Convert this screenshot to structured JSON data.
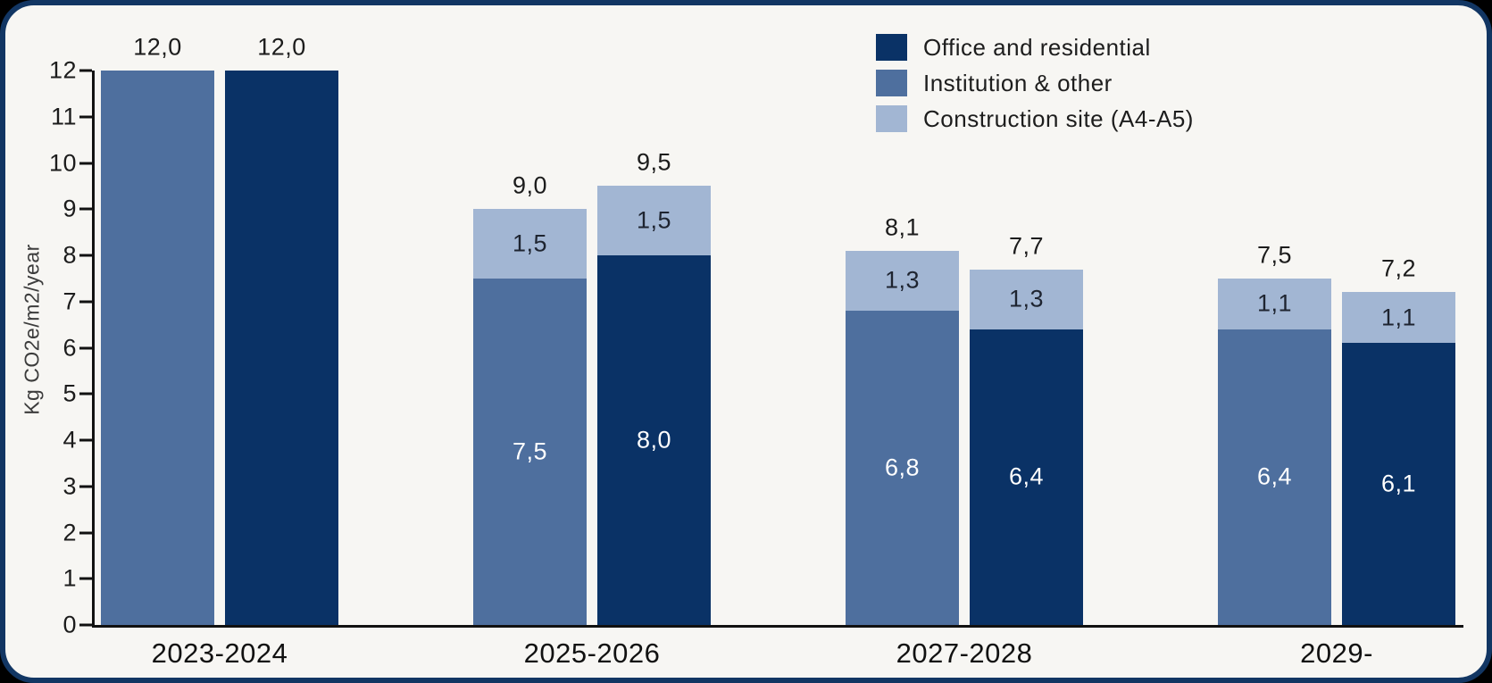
{
  "chart_data": {
    "type": "bar",
    "stacked": true,
    "title": "",
    "xlabel": "",
    "ylabel": "Kg CO2e/m2/year",
    "ylim": [
      0,
      12
    ],
    "yticks": [
      0,
      1,
      2,
      3,
      4,
      5,
      6,
      7,
      8,
      9,
      10,
      11,
      12
    ],
    "grid": false,
    "legend_position": "top-right",
    "legend": [
      {
        "label": "Office and residential",
        "color": "#0a3266"
      },
      {
        "label": "Institution & other",
        "color": "#4e6f9e"
      },
      {
        "label": "Construction site (A4-A5)",
        "color": "#a2b6d3"
      }
    ],
    "categories": [
      "2023-2024",
      "2025-2026",
      "2027-2028",
      "2029-"
    ],
    "groups": [
      {
        "category": "2023-2024",
        "bars": [
          {
            "total": 12.0,
            "total_label": "12,0",
            "segments": [
              {
                "series": "Institution & other",
                "value": 12.0,
                "label": ""
              }
            ]
          },
          {
            "total": 12.0,
            "total_label": "12,0",
            "segments": [
              {
                "series": "Office and residential",
                "value": 12.0,
                "label": ""
              }
            ]
          }
        ]
      },
      {
        "category": "2025-2026",
        "bars": [
          {
            "total": 9.0,
            "total_label": "9,0",
            "segments": [
              {
                "series": "Institution & other",
                "value": 7.5,
                "label": "7,5"
              },
              {
                "series": "Construction site (A4-A5)",
                "value": 1.5,
                "label": "1,5"
              }
            ]
          },
          {
            "total": 9.5,
            "total_label": "9,5",
            "segments": [
              {
                "series": "Office and residential",
                "value": 8.0,
                "label": "8,0"
              },
              {
                "series": "Construction site (A4-A5)",
                "value": 1.5,
                "label": "1,5"
              }
            ]
          }
        ]
      },
      {
        "category": "2027-2028",
        "bars": [
          {
            "total": 8.1,
            "total_label": "8,1",
            "segments": [
              {
                "series": "Institution & other",
                "value": 6.8,
                "label": "6,8"
              },
              {
                "series": "Construction site (A4-A5)",
                "value": 1.3,
                "label": "1,3"
              }
            ]
          },
          {
            "total": 7.7,
            "total_label": "7,7",
            "segments": [
              {
                "series": "Office and residential",
                "value": 6.4,
                "label": "6,4"
              },
              {
                "series": "Construction site (A4-A5)",
                "value": 1.3,
                "label": "1,3"
              }
            ]
          }
        ]
      },
      {
        "category": "2029-",
        "bars": [
          {
            "total": 7.5,
            "total_label": "7,5",
            "segments": [
              {
                "series": "Institution & other",
                "value": 6.4,
                "label": "6,4"
              },
              {
                "series": "Construction site (A4-A5)",
                "value": 1.1,
                "label": "1,1"
              }
            ]
          },
          {
            "total": 7.2,
            "total_label": "7,2",
            "segments": [
              {
                "series": "Office and residential",
                "value": 6.1,
                "label": "6,1"
              },
              {
                "series": "Construction site (A4-A5)",
                "value": 1.1,
                "label": "1,1"
              }
            ]
          }
        ]
      }
    ],
    "colors": {
      "panel_background": "#f7f6f3",
      "panel_border": "#123663",
      "outer_background": "#000000",
      "axis": "#111111",
      "text_dark": "#1c1c1c",
      "text_on_dark_segment": "#ffffff",
      "text_on_light_segment": "#1e2430"
    }
  }
}
